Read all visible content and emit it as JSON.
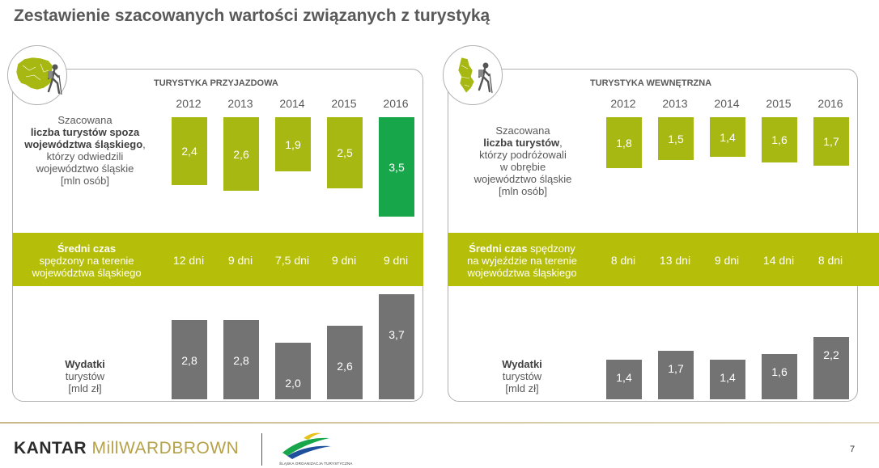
{
  "title": "Zestawienie szacowanych wartości związanych z turystyką",
  "years": [
    "2012",
    "2013",
    "2014",
    "2015",
    "2016"
  ],
  "left": {
    "section_title": "TURYSTYKA PRZYJAZDOWA",
    "desc": {
      "l1": "Szacowana",
      "l2": "liczba turystów spoza",
      "l3": "województwa śląskiego",
      "l3b": ",",
      "l4": "którzy odwiedzili",
      "l5": "województwo śląskie",
      "l6": "[mln osób]"
    },
    "band": {
      "l1": "Średni czas",
      "l2": "spędzony na terenie",
      "l3": "województwa śląskiego"
    },
    "expense": {
      "l1": "Wydatki",
      "l2": "turystów",
      "l3": "[mld zł]"
    }
  },
  "right": {
    "section_title": "TURYSTYKA WEWNĘTRZNA",
    "desc": {
      "l1": "Szacowana",
      "l2": "liczba turystów",
      "l2b": ",",
      "l3": "którzy podróżowali",
      "l4": "w obrębie",
      "l5": "województwo śląskie",
      "l6": "[mln osób]"
    },
    "band": {
      "l1": "Średni czas",
      "l1b": " spędzony",
      "l2": "na wyjeździe na terenie",
      "l3": "województwa śląskiego"
    },
    "expense": {
      "l1": "Wydatki",
      "l2": "turystów",
      "l3": "[mld zł]"
    }
  },
  "chart_data": [
    {
      "type": "bar",
      "title": "TURYSTYKA PRZYJAZDOWA",
      "categories": [
        "2012",
        "2013",
        "2014",
        "2015",
        "2016"
      ],
      "series": [
        {
          "values": [
            2.4,
            2.6,
            1.9,
            2.5,
            3.5
          ],
          "labels": [
            "2,4",
            "2,6",
            "1,9",
            "2,5",
            "3,5"
          ]
        }
      ],
      "orientation": "downward",
      "highlight_index": 4,
      "colors": {
        "bar": "#a7b813",
        "highlight": "#17a74a"
      }
    },
    {
      "type": "table",
      "categories": [
        "2012",
        "2013",
        "2014",
        "2015",
        "2016"
      ],
      "values": [
        "12 dni",
        "9 dni",
        "7,5 dni",
        "9 dni",
        "9 dni"
      ]
    },
    {
      "type": "bar",
      "categories": [
        "2012",
        "2013",
        "2014",
        "2015",
        "2016"
      ],
      "series": [
        {
          "values": [
            2.8,
            2.8,
            2.0,
            2.6,
            3.7
          ],
          "labels": [
            "2,8",
            "2,8",
            "2,0",
            "2,6",
            "3,7"
          ]
        }
      ],
      "colors": {
        "bar": "#737373"
      }
    },
    {
      "type": "bar",
      "title": "TURYSTYKA WEWNĘTRZNA",
      "categories": [
        "2012",
        "2013",
        "2014",
        "2015",
        "2016"
      ],
      "series": [
        {
          "values": [
            1.8,
            1.5,
            1.4,
            1.6,
            1.7
          ],
          "labels": [
            "1,8",
            "1,5",
            "1,4",
            "1,6",
            "1,7"
          ]
        }
      ],
      "orientation": "downward",
      "colors": {
        "bar": "#a7b813"
      }
    },
    {
      "type": "table",
      "categories": [
        "2012",
        "2013",
        "2014",
        "2015",
        "2016"
      ],
      "values": [
        "8 dni",
        "13 dni",
        "9 dni",
        "14 dni",
        "8 dni"
      ]
    },
    {
      "type": "bar",
      "categories": [
        "2012",
        "2013",
        "2014",
        "2015",
        "2016"
      ],
      "series": [
        {
          "values": [
            1.4,
            1.7,
            1.4,
            1.6,
            2.2
          ],
          "labels": [
            "1,4",
            "1,7",
            "1,4",
            "1,6",
            "2,2"
          ]
        }
      ],
      "colors": {
        "bar": "#737373"
      }
    }
  ],
  "footer": {
    "kantar": "KANTAR",
    "millward": "MillWARDBROWN",
    "silesia_text": "ŚLĄSKA ORGANIZACJA TURYSTYCZNA",
    "page_number": "7"
  },
  "colors": {
    "accent_green": "#b5be08",
    "bar_green": "#a7b813",
    "bar_highlight": "#17a74a",
    "bar_grey": "#737373"
  }
}
